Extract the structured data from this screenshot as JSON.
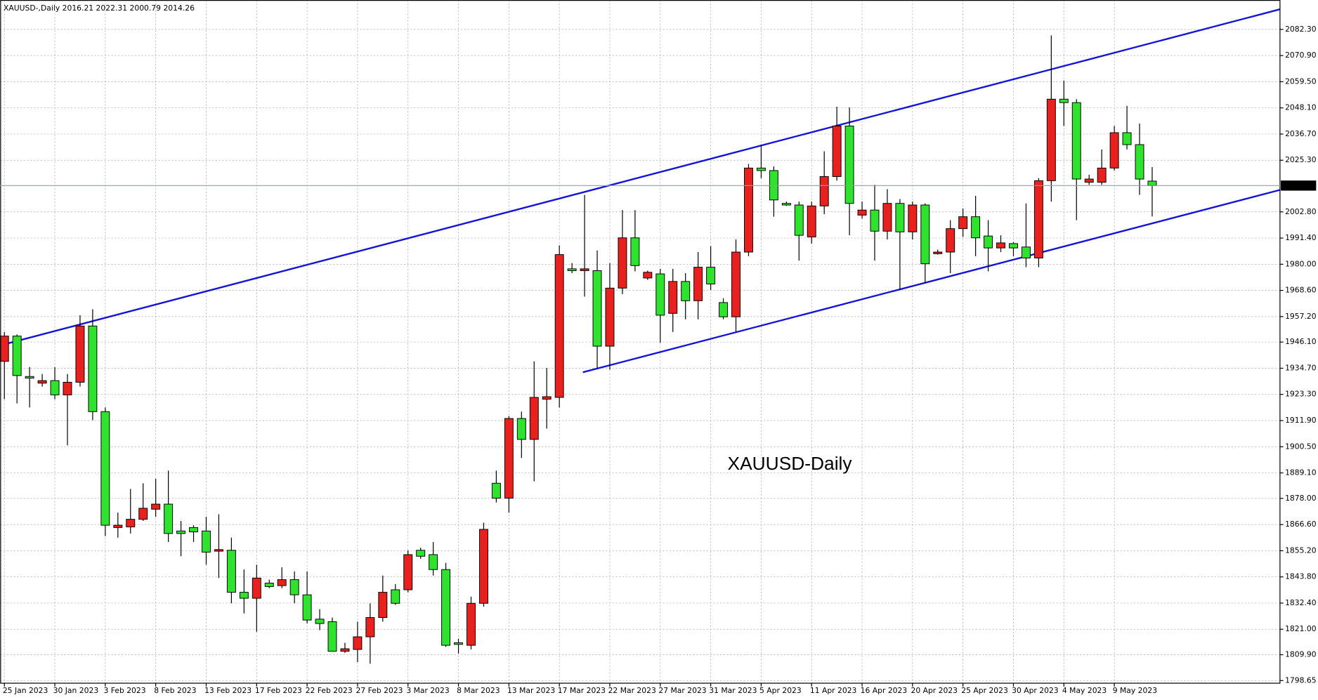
{
  "chart_data": {
    "type": "candlestick",
    "title": "XAUUSD-,Daily  2016.21 2022.31 2000.79 2014.26",
    "annotation": "XAUUSD-Daily",
    "up_color": "#e8201e",
    "down_color": "#2ee22e",
    "annotation_color": "#ff1a1a",
    "grid": true,
    "current_price": 2014.26,
    "categories": [
      "25 Jan 2023",
      null,
      null,
      null,
      "30 Jan 2023",
      null,
      null,
      null,
      "3 Feb 2023",
      null,
      null,
      null,
      "8 Feb 2023",
      null,
      null,
      null,
      "13 Feb 2023",
      null,
      null,
      null,
      "17 Feb 2023",
      null,
      null,
      null,
      "22 Feb 2023",
      null,
      null,
      null,
      "27 Feb 2023",
      null,
      null,
      null,
      "3 Mar 2023",
      null,
      null,
      null,
      "8 Mar 2023",
      null,
      null,
      null,
      "13 Mar 2023",
      null,
      null,
      null,
      "17 Mar 2023",
      null,
      null,
      null,
      "22 Mar 2023",
      null,
      null,
      null,
      "27 Mar 2023",
      null,
      null,
      null,
      "31 Mar 2023",
      null,
      null,
      null,
      "5 Apr 2023",
      null,
      null,
      null,
      "11 Apr 2023",
      null,
      null,
      null,
      "16 Apr 2023",
      null,
      null,
      null,
      "20 Apr 2023",
      null,
      null,
      null,
      "25 Apr 2023",
      null,
      null,
      null,
      "30 Apr 2023",
      null,
      null,
      null,
      "4 May 2023",
      null,
      null,
      null,
      "9 May 2023",
      null,
      null,
      null
    ],
    "open": [
      1937.7,
      1948.7,
      1931.1,
      1928.2,
      1929.3,
      1923.1,
      1928.6,
      1953.1,
      1915.8,
      1865.3,
      1865.6,
      1868.9,
      1873.3,
      1875.5,
      1863.8,
      1865.3,
      1863.8,
      1855.0,
      1855.4,
      1837.1,
      1834.5,
      1841.1,
      1840.0,
      1842.6,
      1836.0,
      1825.4,
      1824.3,
      1811.4,
      1812.2,
      1817.7,
      1826.1,
      1838.2,
      1838.2,
      1855.4,
      1853.5,
      1847.0,
      1815.1,
      1814.0,
      1832.3,
      1884.6,
      1878.1,
      1912.8,
      1903.7,
      1921.2,
      1922.0,
      1978.0,
      1977.2,
      1977.2,
      1944.3,
      1969.6,
      1991.5,
      1974.0,
      1975.8,
      1958.6,
      1972.5,
      1964.1,
      1978.7,
      1963.3,
      1957.1,
      1985.3,
      2021.9,
      2020.8,
      2006.5,
      2005.8,
      1991.9,
      2005.4,
      2018.2,
      2040.2,
      2001.4,
      2003.6,
      1994.4,
      2006.5,
      1994.1,
      2005.8,
      1984.6,
      1985.3,
      1995.5,
      2000.7,
      1992.3,
      1987.1,
      1989.0,
      1987.5,
      1982.7,
      2016.4,
      2051.9,
      2050.4,
      2015.7,
      2015.7,
      2021.9,
      2037.3,
      2032.1,
      2016.21
    ],
    "high": [
      1950.5,
      1949.4,
      1935.2,
      1932.2,
      1935.2,
      1932.2,
      1957.8,
      1960.4,
      1917.6,
      1871.8,
      1882.1,
      1884.6,
      1886.5,
      1890.1,
      1868.2,
      1866.3,
      1870.0,
      1871.1,
      1860.9,
      1847.0,
      1849.1,
      1842.6,
      1848.0,
      1846.2,
      1846.2,
      1829.7,
      1826.1,
      1815.1,
      1824.3,
      1832.3,
      1844.4,
      1840.7,
      1855.4,
      1856.5,
      1859.0,
      1849.9,
      1816.9,
      1835.2,
      1867.4,
      1890.1,
      1913.9,
      1915.8,
      1937.7,
      1934.8,
      1988.2,
      1980.5,
      2010.2,
      1986.0,
      1980.5,
      2003.6,
      2003.6,
      1977.2,
      1978.0,
      1978.0,
      1976.1,
      1985.3,
      1987.9,
      1965.2,
      1990.8,
      2023.7,
      2032.1,
      2022.6,
      2007.3,
      2007.3,
      2007.3,
      2029.2,
      2048.6,
      2048.3,
      2007.3,
      2014.6,
      2012.7,
      2008.4,
      2007.3,
      2006.5,
      1986.4,
      1999.2,
      2004.3,
      2009.8,
      1999.2,
      1992.6,
      1989.7,
      2006.5,
      2017.5,
      2079.7,
      2060.0,
      2051.9,
      2019.0,
      2030.0,
      2040.2,
      2049.0,
      2041.3,
      2022.31
    ],
    "low": [
      1921.2,
      1919.4,
      1917.6,
      1926.7,
      1921.2,
      1901.1,
      1926.7,
      1912.1,
      1861.6,
      1860.9,
      1862.7,
      1868.2,
      1870.0,
      1859.0,
      1852.8,
      1859.0,
      1849.1,
      1843.3,
      1832.3,
      1827.9,
      1819.9,
      1838.9,
      1838.9,
      1832.3,
      1823.5,
      1820.6,
      1811.4,
      1810.7,
      1806.7,
      1806.0,
      1824.3,
      1831.6,
      1837.1,
      1851.7,
      1844.4,
      1813.3,
      1810.4,
      1812.2,
      1830.8,
      1876.2,
      1871.8,
      1895.6,
      1885.4,
      1908.4,
      1917.6,
      1976.1,
      1965.9,
      1934.8,
      1934.1,
      1967.0,
      1976.9,
      1973.2,
      1945.8,
      1950.5,
      1956.0,
      1956.0,
      1968.8,
      1956.0,
      1950.5,
      1983.5,
      2017.5,
      2000.7,
      2005.4,
      1981.6,
      1989.0,
      2001.8,
      2016.4,
      1992.6,
      1999.9,
      1981.6,
      1990.8,
      1968.8,
      1990.8,
      1971.8,
      1984.2,
      1976.1,
      1991.9,
      1983.5,
      1976.9,
      1985.3,
      1983.5,
      1978.7,
      1978.7,
      2007.3,
      2040.2,
      1999.2,
      2014.6,
      2014.6,
      2020.8,
      2030.0,
      2010.2,
      2000.79
    ],
    "close": [
      1948.7,
      1931.5,
      1930.4,
      1929.3,
      1923.1,
      1928.6,
      1953.1,
      1915.8,
      1866.3,
      1866.3,
      1868.9,
      1873.7,
      1875.5,
      1862.7,
      1862.7,
      1863.4,
      1854.6,
      1855.7,
      1837.1,
      1834.5,
      1843.3,
      1839.6,
      1842.6,
      1836.0,
      1825.0,
      1823.5,
      1811.4,
      1812.5,
      1817.7,
      1826.1,
      1837.1,
      1832.3,
      1853.5,
      1852.8,
      1847.0,
      1814.0,
      1814.4,
      1832.3,
      1864.5,
      1878.1,
      1912.8,
      1903.7,
      1922.0,
      1922.3,
      1984.2,
      1977.2,
      1978.0,
      1944.3,
      1969.6,
      1991.5,
      1979.4,
      1976.5,
      1957.8,
      1972.5,
      1964.1,
      1978.7,
      1971.4,
      1957.1,
      1985.3,
      2021.9,
      2020.8,
      2008.0,
      2005.8,
      1992.6,
      2005.4,
      2018.2,
      2040.2,
      2006.5,
      2003.6,
      1994.4,
      2006.5,
      1994.1,
      2005.8,
      1980.2,
      1985.3,
      1995.5,
      2000.7,
      1991.5,
      1987.1,
      1989.3,
      1987.1,
      1982.7,
      2016.4,
      2051.9,
      2050.4,
      2017.1,
      2017.1,
      2021.9,
      2037.3,
      2032.1,
      2017.1,
      2014.26
    ],
    "ylim": [
      1797.5,
      2095.1
    ],
    "yticks": [
      {
        "value": 2082.3,
        "label": "2082.30"
      },
      {
        "value": 2070.9,
        "label": "2070.90"
      },
      {
        "value": 2059.5,
        "label": "2059.50"
      },
      {
        "value": 2048.1,
        "label": "2048.10"
      },
      {
        "value": 2036.7,
        "label": "2036.70"
      },
      {
        "value": 2025.3,
        "label": "2025.30"
      },
      {
        "value": 2002.8,
        "label": "2002.80"
      },
      {
        "value": 1991.4,
        "label": "1991.40"
      },
      {
        "value": 1980,
        "label": "1980.00"
      },
      {
        "value": 1968.6,
        "label": "1968.60"
      },
      {
        "value": 1957.2,
        "label": "1957.20"
      },
      {
        "value": 1946.1,
        "label": "1946.10"
      },
      {
        "value": 1934.7,
        "label": "1934.70"
      },
      {
        "value": 1923.3,
        "label": "1923.30"
      },
      {
        "value": 1911.9,
        "label": "1911.90"
      },
      {
        "value": 1900.5,
        "label": "1900.50"
      },
      {
        "value": 1889.1,
        "label": "1889.10"
      },
      {
        "value": 1878,
        "label": "1878.00"
      },
      {
        "value": 1866.6,
        "label": "1866.60"
      },
      {
        "value": 1855.2,
        "label": "1855.20"
      },
      {
        "value": 1843.8,
        "label": "1843.80"
      },
      {
        "value": 1832.4,
        "label": "1832.40"
      },
      {
        "value": 1821,
        "label": "1821.00"
      },
      {
        "value": 1809.9,
        "label": "1809.90"
      },
      1798.65
    ]
  }
}
